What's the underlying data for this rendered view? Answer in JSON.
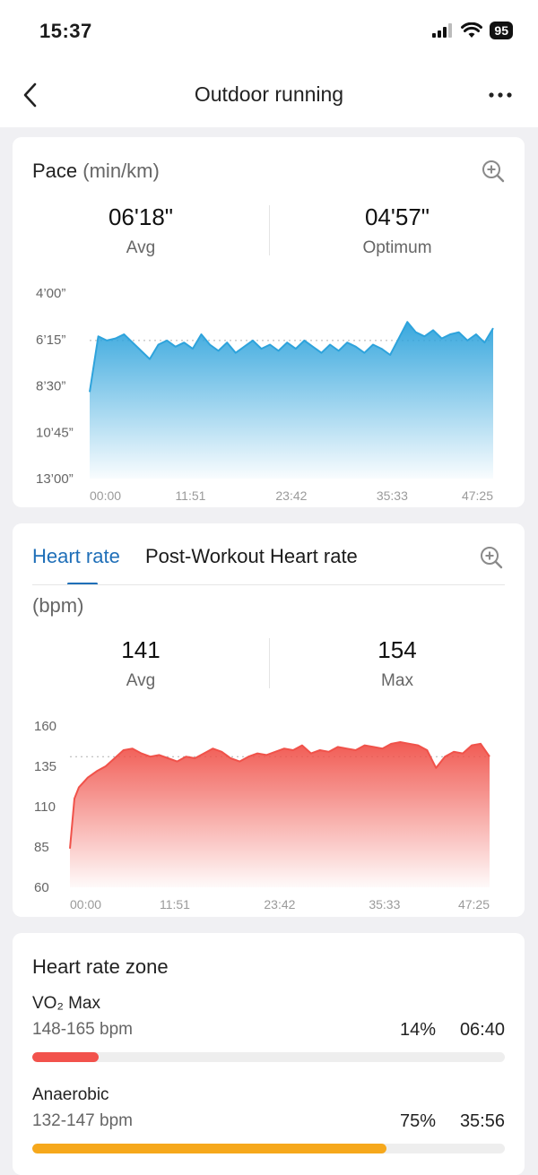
{
  "status_bar": {
    "time": "15:37",
    "battery": "95"
  },
  "nav": {
    "title": "Outdoor running"
  },
  "pace": {
    "title": "Pace",
    "unit": "(min/km)",
    "avg_value": "06'18\"",
    "avg_label": "Avg",
    "opt_value": "04'57\"",
    "opt_label": "Optimum",
    "color": "#2ea3dc"
  },
  "heart": {
    "tab_active": "Heart rate",
    "tab_other": "Post-Workout Heart rate",
    "unit": "(bpm)",
    "avg_value": "141",
    "avg_label": "Avg",
    "max_value": "154",
    "max_label": "Max",
    "color": "#f0524a"
  },
  "zones": {
    "title": "Heart rate zone",
    "items": [
      {
        "name": "VO₂ Max",
        "range": "148-165 bpm",
        "percent": "14%",
        "time": "06:40",
        "fill": 0.14,
        "color": "#f2524c"
      },
      {
        "name": "Anaerobic",
        "range": "132-147 bpm",
        "percent": "75%",
        "time": "35:56",
        "fill": 0.75,
        "color": "#f6a81c"
      }
    ]
  },
  "chart_data": [
    {
      "type": "area",
      "title": "Pace",
      "ylabel": "(min/km)",
      "y_tick_labels": [
        "4’00”",
        "6’15”",
        "8’30”",
        "10’45”",
        "13’00”"
      ],
      "y_ticks_min": [
        4.0,
        6.25,
        8.5,
        10.75,
        13.0
      ],
      "ylim": [
        4.0,
        13.0
      ],
      "y_inverted": true,
      "x_tick_labels": [
        "00:00",
        "11:51",
        "23:42",
        "35:33",
        "47:25"
      ],
      "x_min": [
        0,
        11.85,
        23.7,
        35.55,
        47.42
      ],
      "avg_line_min": 6.3,
      "x": [
        0,
        1,
        2,
        3,
        4,
        5,
        6,
        7,
        8,
        9,
        10,
        11,
        12,
        13,
        14,
        15,
        16,
        17,
        18,
        19,
        20,
        21,
        22,
        23,
        24,
        25,
        26,
        27,
        28,
        29,
        30,
        31,
        32,
        33,
        34,
        35,
        36,
        37,
        38,
        39,
        40,
        41,
        42,
        43,
        44,
        45,
        46,
        47
      ],
      "values": [
        8.8,
        6.1,
        6.3,
        6.2,
        6.0,
        6.4,
        6.8,
        7.2,
        6.5,
        6.3,
        6.6,
        6.4,
        6.7,
        6.0,
        6.5,
        6.8,
        6.4,
        6.9,
        6.6,
        6.3,
        6.7,
        6.5,
        6.8,
        6.4,
        6.7,
        6.3,
        6.6,
        6.9,
        6.5,
        6.8,
        6.4,
        6.6,
        6.9,
        6.5,
        6.7,
        7.0,
        6.2,
        5.4,
        5.9,
        6.1,
        5.8,
        6.2,
        6.0,
        5.9,
        6.3,
        6.0,
        6.4,
        5.7
      ]
    },
    {
      "type": "area",
      "title": "Heart rate",
      "ylabel": "(bpm)",
      "y_ticks": [
        160,
        135,
        110,
        85,
        60
      ],
      "ylim": [
        60,
        160
      ],
      "x_tick_labels": [
        "00:00",
        "11:51",
        "23:42",
        "35:33",
        "47:25"
      ],
      "x_min": [
        0,
        11.85,
        23.7,
        35.55,
        47.42
      ],
      "avg_line": 141,
      "x": [
        0,
        0.5,
        1,
        2,
        3,
        4,
        5,
        6,
        7,
        8,
        9,
        10,
        11,
        12,
        13,
        14,
        15,
        16,
        17,
        18,
        19,
        20,
        21,
        22,
        23,
        24,
        25,
        26,
        27,
        28,
        29,
        30,
        31,
        32,
        33,
        34,
        35,
        36,
        37,
        38,
        39,
        40,
        41,
        42,
        43,
        44,
        45,
        46,
        47
      ],
      "values": [
        84,
        115,
        122,
        128,
        132,
        135,
        140,
        145,
        146,
        143,
        141,
        142,
        140,
        138,
        141,
        140,
        143,
        146,
        144,
        140,
        138,
        141,
        143,
        142,
        144,
        146,
        145,
        148,
        143,
        145,
        144,
        147,
        146,
        145,
        148,
        147,
        146,
        149,
        150,
        149,
        148,
        145,
        134,
        141,
        144,
        143,
        148,
        149,
        141
      ]
    }
  ]
}
